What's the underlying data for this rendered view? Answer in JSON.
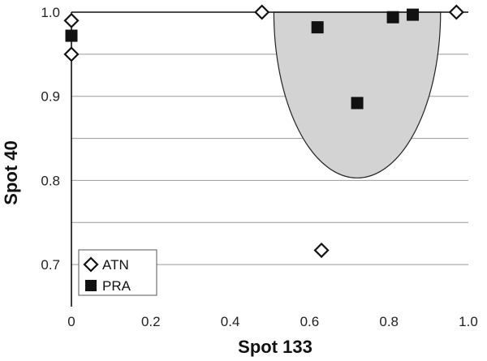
{
  "chart_data": {
    "type": "scatter",
    "xlabel": "Spot 133",
    "ylabel": "Spot 40",
    "xlim": [
      0,
      1.0
    ],
    "ylim": [
      0.65,
      1.0
    ],
    "xticks": [
      "0",
      "0.2",
      "0.4",
      "0.6",
      "0.8",
      "1.0"
    ],
    "yticks": [
      "0.7",
      "0.8",
      "0.9",
      "1.0"
    ],
    "gridlines_y": [
      0.7,
      0.75,
      0.8,
      0.85,
      0.9,
      0.95
    ],
    "legend_position": "bottom-left",
    "series": [
      {
        "name": "ATN",
        "marker": "open-diamond",
        "color": "#111111",
        "points": [
          {
            "x": 0.0,
            "y": 0.99
          },
          {
            "x": 0.0,
            "y": 0.95
          },
          {
            "x": 0.48,
            "y": 1.0
          },
          {
            "x": 0.63,
            "y": 0.717
          },
          {
            "x": 0.97,
            "y": 1.0
          }
        ]
      },
      {
        "name": "PRA",
        "marker": "filled-square",
        "color": "#111111",
        "points": [
          {
            "x": 0.0,
            "y": 0.972
          },
          {
            "x": 0.62,
            "y": 0.982
          },
          {
            "x": 0.72,
            "y": 0.892
          },
          {
            "x": 0.81,
            "y": 0.994
          },
          {
            "x": 0.86,
            "y": 0.997
          }
        ]
      }
    ],
    "region": {
      "shape": "half-ellipse",
      "fill": "#d3d3d3",
      "x_left": 0.51,
      "x_right": 0.93,
      "y_top": 1.0,
      "y_bottom": 0.803
    }
  }
}
